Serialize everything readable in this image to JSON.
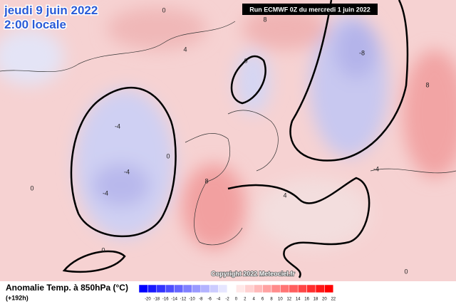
{
  "header": {
    "date": "jeudi 9 juin 2022",
    "time": "2:00 locale",
    "run": "Run ECMWF 0Z du mercredi 1 juin 2022"
  },
  "map": {
    "copyright": "Copyright 2022 Meteociel.fr",
    "contour_labels": [
      "0",
      "-4",
      "-4",
      "-4",
      "0",
      "0",
      "0",
      "-8",
      "8",
      "4",
      "8",
      "0",
      "0",
      "-4",
      "4",
      "8"
    ]
  },
  "legend": {
    "title": "Anomalie Temp. à 850hPa (°C)",
    "lead": "(+192h)",
    "ticks": [
      -20,
      -18,
      -16,
      -14,
      -12,
      -10,
      -8,
      -6,
      -4,
      -2,
      0,
      2,
      4,
      6,
      8,
      10,
      12,
      14,
      16,
      18,
      20,
      22
    ]
  }
}
